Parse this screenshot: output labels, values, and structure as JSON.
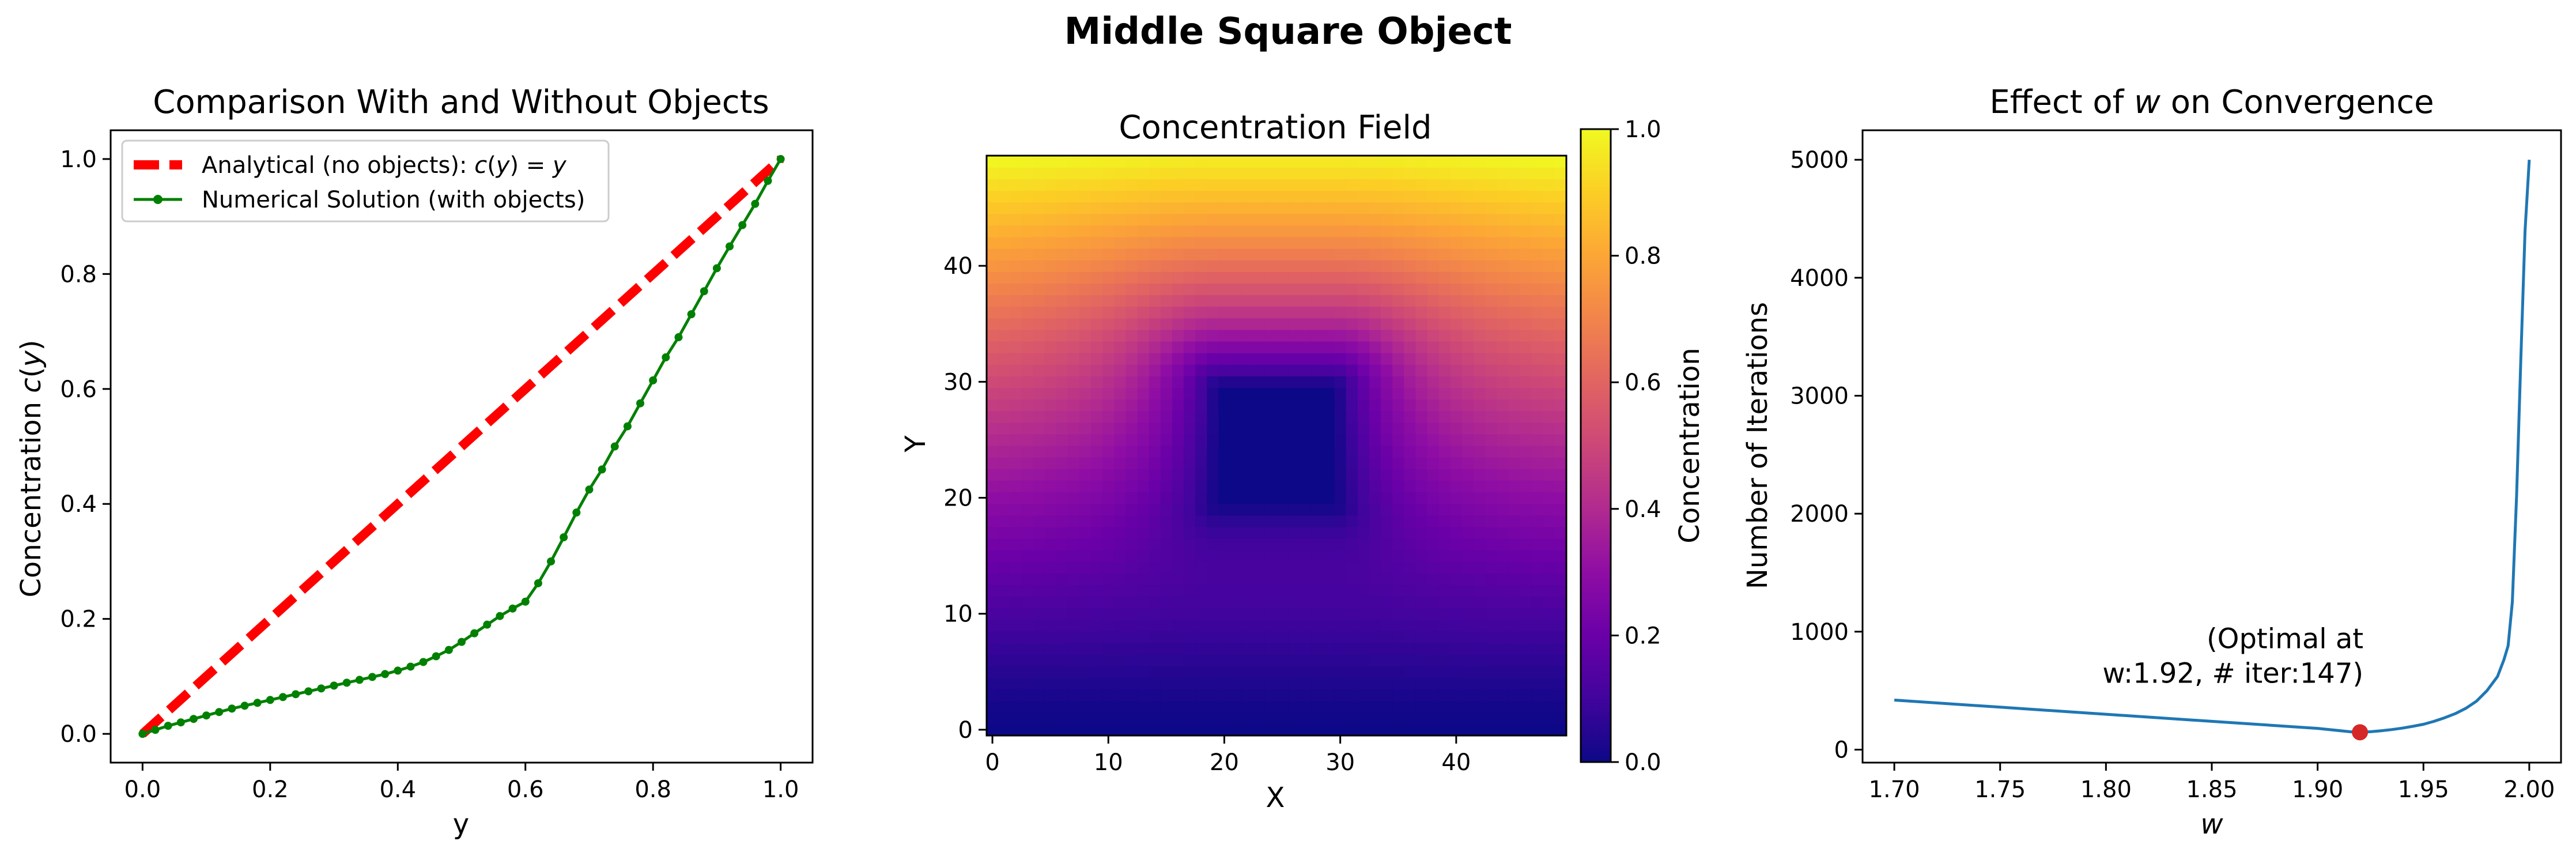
{
  "figure": {
    "suptitle": "Middle Square Object"
  },
  "chart_data": [
    {
      "type": "line",
      "title": "Comparison With and Without Objects",
      "xlabel": "y",
      "ylabel": "Concentration c(y)",
      "xlim": [
        -0.05,
        1.05
      ],
      "ylim": [
        -0.05,
        1.05
      ],
      "xticks": [
        0.0,
        0.2,
        0.4,
        0.6,
        0.8,
        1.0
      ],
      "xtick_labels": [
        "0.0",
        "0.2",
        "0.4",
        "0.6",
        "0.8",
        "1.0"
      ],
      "yticks": [
        0.0,
        0.2,
        0.4,
        0.6,
        0.8,
        1.0
      ],
      "ytick_labels": [
        "0.0",
        "0.2",
        "0.4",
        "0.6",
        "0.8",
        "1.0"
      ],
      "legend_position": "upper-left",
      "series": [
        {
          "name": "Analytical (no objects): c(y) = y",
          "color": "#ff0000",
          "style": "dashed",
          "x": [
            0.0,
            1.0
          ],
          "y": [
            0.0,
            1.0
          ]
        },
        {
          "name": "Numerical Solution (with objects)",
          "color": "#008000",
          "style": "solid-dot-markers",
          "x": [
            0.0,
            0.02,
            0.04,
            0.06,
            0.08,
            0.1,
            0.12,
            0.14,
            0.16,
            0.18,
            0.2,
            0.22,
            0.24,
            0.26,
            0.28,
            0.3,
            0.32,
            0.34,
            0.36,
            0.38,
            0.4,
            0.42,
            0.44,
            0.46,
            0.48,
            0.5,
            0.52,
            0.54,
            0.56,
            0.58,
            0.6,
            0.62,
            0.64,
            0.66,
            0.68,
            0.7,
            0.72,
            0.74,
            0.76,
            0.78,
            0.8,
            0.82,
            0.84,
            0.86,
            0.88,
            0.9,
            0.92,
            0.94,
            0.96,
            0.98,
            1.0
          ],
          "y": [
            0.0,
            0.007,
            0.014,
            0.02,
            0.026,
            0.032,
            0.038,
            0.044,
            0.049,
            0.054,
            0.059,
            0.064,
            0.069,
            0.074,
            0.079,
            0.084,
            0.089,
            0.094,
            0.099,
            0.104,
            0.11,
            0.117,
            0.125,
            0.135,
            0.146,
            0.16,
            0.175,
            0.19,
            0.205,
            0.218,
            0.23,
            0.262,
            0.3,
            0.342,
            0.385,
            0.425,
            0.46,
            0.5,
            0.535,
            0.575,
            0.615,
            0.655,
            0.69,
            0.73,
            0.77,
            0.81,
            0.848,
            0.885,
            0.922,
            0.962,
            1.0
          ]
        }
      ]
    },
    {
      "type": "heatmap",
      "title": "Concentration Field",
      "xlabel": "X",
      "ylabel": "Y",
      "grid_size": [
        50,
        50
      ],
      "xlim": [
        -0.5,
        49.5
      ],
      "ylim": [
        -0.5,
        49.5
      ],
      "xticks": [
        0,
        10,
        20,
        30,
        40
      ],
      "xtick_labels": [
        "0",
        "10",
        "20",
        "30",
        "40"
      ],
      "yticks": [
        0,
        10,
        20,
        30,
        40
      ],
      "ytick_labels": [
        "0",
        "10",
        "20",
        "30",
        "40"
      ],
      "object": {
        "x_range": [
          20,
          29
        ],
        "y_range": [
          20,
          29
        ],
        "value": 0.0
      },
      "colormap": "plasma",
      "colorbar": {
        "label": "Concentration",
        "range": [
          0.0,
          1.0
        ],
        "ticks": [
          0.0,
          0.2,
          0.4,
          0.6,
          0.8,
          1.0
        ],
        "tick_labels": [
          "0.0",
          "0.2",
          "0.4",
          "0.6",
          "0.8",
          "1.0"
        ]
      }
    },
    {
      "type": "line",
      "title": "Effect of w on Convergence",
      "xlabel": "w",
      "ylabel": "Number of Iterations",
      "xlim": [
        1.685,
        2.015
      ],
      "ylim": [
        -110,
        5250
      ],
      "xticks": [
        1.7,
        1.75,
        1.8,
        1.85,
        1.9,
        1.95,
        2.0
      ],
      "xtick_labels": [
        "1.70",
        "1.75",
        "1.80",
        "1.85",
        "1.90",
        "1.95",
        "2.00"
      ],
      "yticks": [
        0,
        1000,
        2000,
        3000,
        4000,
        5000
      ],
      "ytick_labels": [
        "0",
        "1000",
        "2000",
        "3000",
        "4000",
        "5000"
      ],
      "series": [
        {
          "name": "",
          "color": "#1f77b4",
          "x": [
            1.7,
            1.75,
            1.8,
            1.85,
            1.9,
            1.918,
            1.925,
            1.93,
            1.935,
            1.94,
            1.945,
            1.95,
            1.955,
            1.96,
            1.965,
            1.97,
            1.975,
            1.98,
            1.985,
            1.988,
            1.99,
            1.992,
            1.994,
            1.996,
            1.998,
            2.0
          ],
          "y": [
            420,
            360,
            300,
            240,
            180,
            147,
            152,
            160,
            170,
            182,
            198,
            215,
            240,
            270,
            305,
            350,
            410,
            500,
            620,
            760,
            880,
            1250,
            2150,
            3300,
            4400,
            5000
          ]
        }
      ],
      "highlight": {
        "x": 1.92,
        "y": 147,
        "color": "#d62728"
      },
      "annotation": {
        "line1": "(Optimal at",
        "line2": "w:1.92, # iter:147)"
      }
    }
  ]
}
